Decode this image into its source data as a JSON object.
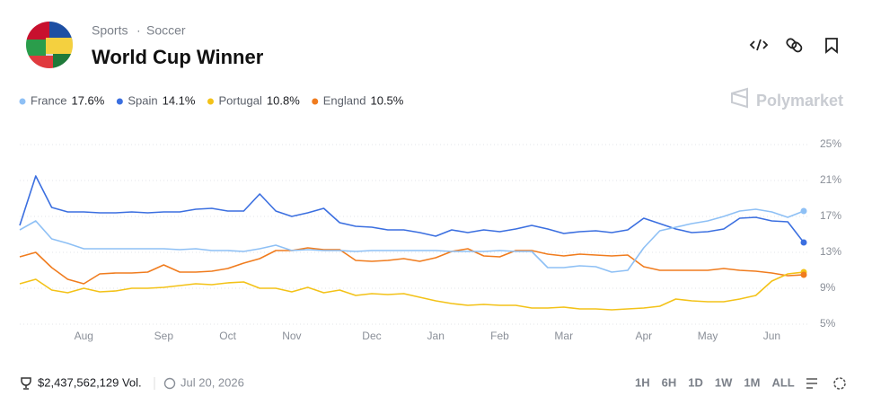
{
  "header": {
    "breadcrumb": [
      "Sports",
      "Soccer"
    ],
    "title": "World Cup Winner",
    "brand": "Polymarket"
  },
  "footer": {
    "volume": "$2,437,562,129 Vol.",
    "date": "Jul 20, 2026",
    "ranges": [
      "1H",
      "6H",
      "1D",
      "1W",
      "1M",
      "ALL"
    ]
  },
  "chart_data": {
    "type": "line",
    "categories": [
      null,
      null,
      null,
      null,
      "Aug",
      null,
      null,
      null,
      null,
      "Sep",
      null,
      null,
      null,
      "Oct",
      null,
      null,
      null,
      "Nov",
      null,
      null,
      null,
      null,
      "Dec",
      null,
      null,
      null,
      "Jan",
      null,
      null,
      null,
      "Feb",
      null,
      null,
      null,
      "Mar",
      null,
      null,
      null,
      null,
      "Apr",
      null,
      null,
      null,
      "May",
      null,
      null,
      null,
      "Jun",
      null,
      null
    ],
    "series": [
      {
        "name": "France",
        "latest": "17.6%",
        "color": "#8ec0f5",
        "values": [
          15.5,
          16.5,
          14.5,
          14,
          13.4,
          13.4,
          13.4,
          13.4,
          13.4,
          13.4,
          13.3,
          13.4,
          13.2,
          13.2,
          13.1,
          13.4,
          13.8,
          13.2,
          13.3,
          13.2,
          13.2,
          13.1,
          13.2,
          13.2,
          13.2,
          13.2,
          13.2,
          13.1,
          13.1,
          13.1,
          13.2,
          13.1,
          13.1,
          11.3,
          11.3,
          11.5,
          11.4,
          10.8,
          11,
          13.5,
          15.4,
          15.8,
          16.2,
          16.5,
          17,
          17.6,
          17.8,
          17.5,
          16.9,
          17.6
        ]
      },
      {
        "name": "Spain",
        "latest": "14.1%",
        "color": "#3b6fe0",
        "values": [
          16,
          21.5,
          18,
          17.5,
          17.5,
          17.4,
          17.4,
          17.5,
          17.4,
          17.5,
          17.5,
          17.8,
          17.9,
          17.6,
          17.6,
          19.5,
          17.6,
          17,
          17.4,
          17.9,
          16.3,
          15.9,
          15.8,
          15.5,
          15.5,
          15.2,
          14.8,
          15.5,
          15.2,
          15.5,
          15.3,
          15.6,
          16,
          15.6,
          15.1,
          15.3,
          15.4,
          15.2,
          15.5,
          16.8,
          16.2,
          15.6,
          15.2,
          15.3,
          15.6,
          16.8,
          16.9,
          16.5,
          16.4,
          14.1
        ]
      },
      {
        "name": "Portugal",
        "latest": "10.8%",
        "color": "#f3c218",
        "values": [
          9.5,
          10,
          8.8,
          8.5,
          9,
          8.6,
          8.7,
          9,
          9,
          9.1,
          9.3,
          9.5,
          9.4,
          9.6,
          9.7,
          9,
          9,
          8.6,
          9.1,
          8.5,
          8.8,
          8.2,
          8.4,
          8.3,
          8.4,
          8,
          7.6,
          7.3,
          7.1,
          7.2,
          7.1,
          7.1,
          6.8,
          6.8,
          6.9,
          6.7,
          6.7,
          6.6,
          6.7,
          6.8,
          7,
          7.8,
          7.6,
          7.5,
          7.5,
          7.8,
          8.2,
          9.8,
          10.6,
          10.8
        ]
      },
      {
        "name": "England",
        "latest": "10.5%",
        "color": "#f07c1e",
        "values": [
          12.5,
          13,
          11.3,
          10,
          9.5,
          10.6,
          10.7,
          10.7,
          10.8,
          11.6,
          10.8,
          10.8,
          10.9,
          11.2,
          11.8,
          12.3,
          13.2,
          13.2,
          13.5,
          13.3,
          13.3,
          12.1,
          12,
          12.1,
          12.3,
          12,
          12.4,
          13.1,
          13.4,
          12.6,
          12.5,
          13.2,
          13.2,
          12.8,
          12.6,
          12.8,
          12.7,
          12.6,
          12.7,
          11.4,
          11,
          11,
          11,
          11,
          11.2,
          11,
          10.9,
          10.7,
          10.4,
          10.5
        ]
      }
    ],
    "ylim": [
      4,
      26
    ],
    "yticks": [
      {
        "value": 5,
        "label": "5%"
      },
      {
        "value": 9,
        "label": "9%"
      },
      {
        "value": 13,
        "label": "13%"
      },
      {
        "value": 17,
        "label": "17%"
      },
      {
        "value": 21,
        "label": "21%"
      },
      {
        "value": 25,
        "label": "25%"
      }
    ],
    "grid": true
  }
}
